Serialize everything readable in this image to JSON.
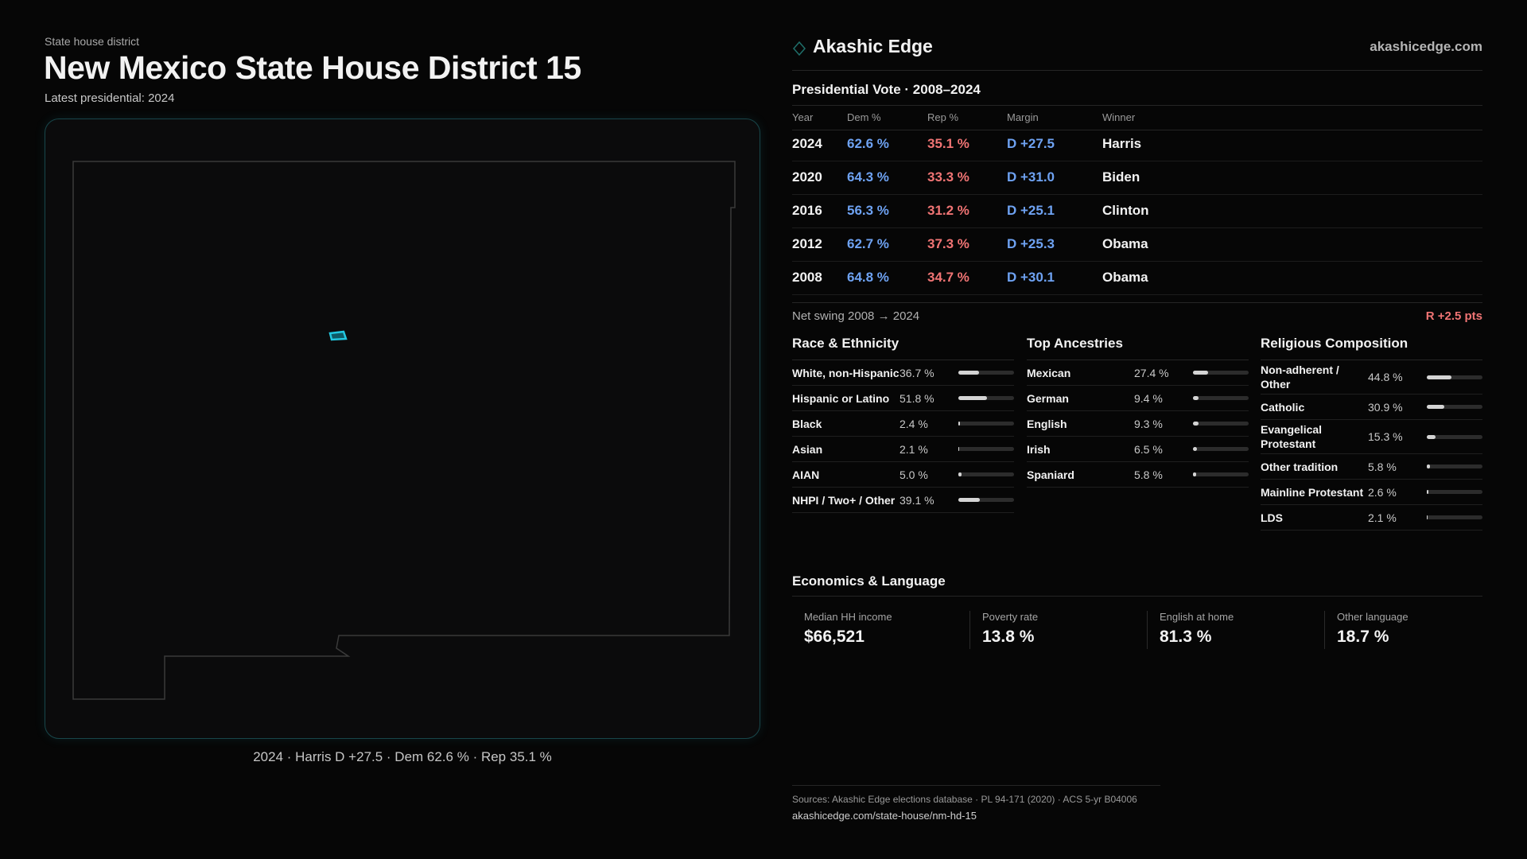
{
  "header": {
    "eyebrow": "State house district",
    "title": "New Mexico State House District 15",
    "subtitle": "Latest presidential: 2024"
  },
  "map": {
    "caption": "2024 · Harris D +27.5 · Dem 62.6 % · Rep 35.1 %"
  },
  "brand": {
    "name": "Akashic Edge",
    "url": "akashicedge.com"
  },
  "presidential": {
    "title": "Presidential Vote · 2008–2024",
    "columns": [
      "Year",
      "Dem %",
      "Rep %",
      "Margin",
      "Winner"
    ],
    "rows": [
      [
        "2024",
        "62.6 %",
        "35.1 %",
        "D +27.5",
        "Harris"
      ],
      [
        "2020",
        "64.3 %",
        "33.3 %",
        "D +31.0",
        "Biden"
      ],
      [
        "2016",
        "56.3 %",
        "31.2 %",
        "D +25.1",
        "Clinton"
      ],
      [
        "2012",
        "62.7 %",
        "37.3 %",
        "D +25.3",
        "Obama"
      ],
      [
        "2008",
        "64.8 %",
        "34.7 %",
        "D +30.1",
        "Obama"
      ]
    ],
    "net_swing": {
      "label": "Net swing 2008 → 2024",
      "value": "R +2.5 pts"
    }
  },
  "demographics": {
    "xlim": [
      0,
      100
    ],
    "sections": [
      {
        "title": "Race & Ethnicity",
        "rows": [
          {
            "label": "White, non-Hispanic",
            "value": 36.7,
            "value_label": "36.7 %"
          },
          {
            "label": "Hispanic or Latino",
            "value": 51.8,
            "value_label": "51.8 %"
          },
          {
            "label": "Black",
            "value": 2.4,
            "value_label": "2.4 %"
          },
          {
            "label": "Asian",
            "value": 2.1,
            "value_label": "2.1 %"
          },
          {
            "label": "AIAN",
            "value": 5.0,
            "value_label": "5.0 %"
          },
          {
            "label": "NHPI / Two+ / Other",
            "value": 39.1,
            "value_label": "39.1 %"
          }
        ]
      },
      {
        "title": "Top Ancestries",
        "rows": [
          {
            "label": "Mexican",
            "value": 27.4,
            "value_label": "27.4 %"
          },
          {
            "label": "German",
            "value": 9.4,
            "value_label": "9.4 %"
          },
          {
            "label": "English",
            "value": 9.3,
            "value_label": "9.3 %"
          },
          {
            "label": "Irish",
            "value": 6.5,
            "value_label": "6.5 %"
          },
          {
            "label": "Spaniard",
            "value": 5.8,
            "value_label": "5.8 %"
          }
        ]
      },
      {
        "title": "Religious Composition",
        "rows": [
          {
            "label": "Non-adherent / Other",
            "value": 44.8,
            "value_label": "44.8 %"
          },
          {
            "label": "Catholic",
            "value": 30.9,
            "value_label": "30.9 %"
          },
          {
            "label": "Evangelical Protestant",
            "value": 15.3,
            "value_label": "15.3 %"
          },
          {
            "label": "Other tradition",
            "value": 5.8,
            "value_label": "5.8 %"
          },
          {
            "label": "Mainline Protestant",
            "value": 2.6,
            "value_label": "2.6 %"
          },
          {
            "label": "LDS",
            "value": 2.1,
            "value_label": "2.1 %"
          }
        ]
      }
    ]
  },
  "economics": {
    "title": "Economics & Language",
    "items": [
      {
        "label": "Median HH income",
        "value": "$66,521"
      },
      {
        "label": "Poverty rate",
        "value": "13.8 %"
      },
      {
        "label": "English at home",
        "value": "81.3 %"
      },
      {
        "label": "Other language",
        "value": "18.7 %"
      }
    ]
  },
  "footer": {
    "sources": "Sources: Akashic Edge elections database · PL 94-171 (2020) · ACS 5-yr B04006",
    "url": "akashicedge.com/state-house/nm-hd-15"
  }
}
